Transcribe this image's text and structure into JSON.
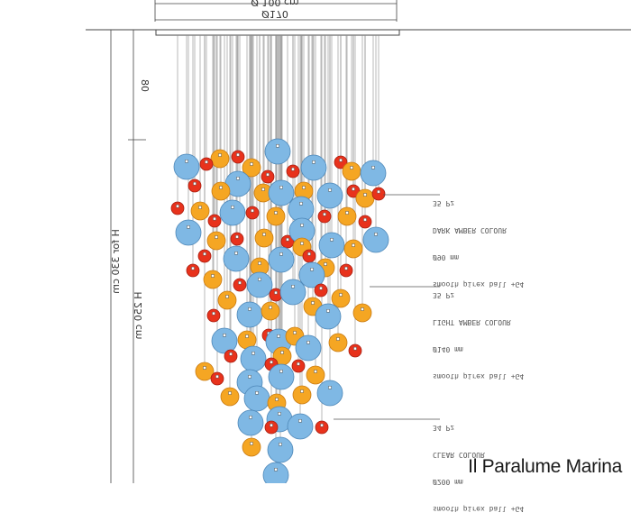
{
  "dimensions": {
    "top_width": "Ø 100 cm",
    "top_diameter": "Ø170",
    "segment_top": "80",
    "total_height": "H for 330 cm",
    "body_height": "H 250 cm"
  },
  "callouts": [
    {
      "title": "smooth pirex ball +G4",
      "size": "Ø90 mm",
      "colour": "DARK AMBER COLOUR",
      "qty": "35 Pz"
    },
    {
      "title": "smooth pirex ball +G4",
      "size": "Ø140 mm",
      "colour": "LIGHT AMBER COLOUR",
      "qty": "35 Pz"
    },
    {
      "title": "smooth pirex ball +G4",
      "size": "Ø200 mm",
      "colour": "CLEAR COLOUR",
      "qty": "34 Pz"
    }
  ],
  "brand": "Il Paralume Marina",
  "colors": {
    "clear": "#7fb8e4",
    "clear_edge": "#4d87b8",
    "light_amber": "#f5a623",
    "light_amber_edge": "#c97b12",
    "dark_amber": "#e8321c",
    "dark_amber_edge": "#a81e10",
    "line": "#555555"
  }
}
